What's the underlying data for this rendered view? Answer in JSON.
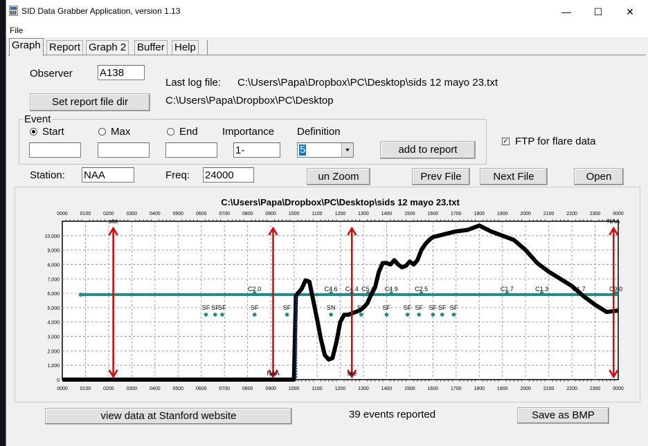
{
  "window": {
    "title": "SID Data Grabber Application, version 1.13",
    "controls": {
      "minimize": "—",
      "maximize": "☐",
      "close": "✕"
    }
  },
  "menu": {
    "file": "File"
  },
  "tabs": [
    "Graph",
    "Report",
    "Graph 2",
    "Buffer",
    "Help"
  ],
  "observer": {
    "label": "Observer",
    "value": "A138"
  },
  "last_log": {
    "label": "Last log file:",
    "path": "C:\\Users\\Papa\\Dropbox\\PC\\Desktop\\sids 12 mayo 23.txt"
  },
  "report_dir": {
    "button": "Set report file dir",
    "path": "C:\\Users\\Papa\\Dropbox\\PC\\Desktop"
  },
  "event": {
    "legend": "Event",
    "start": "Start",
    "max": "Max",
    "end": "End",
    "importance_label": "Importance",
    "importance_value": "1-",
    "definition_label": "Definition",
    "definition_value": "5",
    "add_button": "add to report"
  },
  "ftp": {
    "label": "FTP for flare data",
    "checked": "✓"
  },
  "station": {
    "label": "Station:",
    "value": "NAA"
  },
  "freq": {
    "label": "Freq:",
    "value": "24000"
  },
  "buttons": {
    "unzoom": "un Zoom",
    "prev": "Prev File",
    "next": "Next File",
    "open": "Open",
    "stanford": "view data at Stanford website",
    "save": "Save as BMP"
  },
  "events_reported": "39 events reported",
  "chart_data": {
    "type": "line",
    "title": "C:\\Users\\Papa\\Dropbox\\PC\\Desktop\\sids 12 mayo 23.txt",
    "x_ticks": [
      "0000",
      "0100",
      "0200",
      "0300",
      "0400",
      "0500",
      "0600",
      "0700",
      "0800",
      "0900",
      "1000",
      "1100",
      "1200",
      "1300",
      "1400",
      "1500",
      "1600",
      "1700",
      "1800",
      "1900",
      "2000",
      "2100",
      "2200",
      "2300",
      "0000"
    ],
    "y_ticks": [
      "0",
      "1,000",
      "2,000",
      "3,000",
      "4,000",
      "5,000",
      "6,000",
      "7,000",
      "8,000",
      "9,000",
      "10,000"
    ],
    "ylim": [
      0,
      11000
    ],
    "xlim_hours": [
      0,
      24
    ],
    "grid": true,
    "series": [
      {
        "values_hhmm": [
          "0000",
          "1000",
          "1005",
          "1010",
          "1020",
          "1030",
          "1040",
          "1050",
          "1100",
          "1110",
          "1120",
          "1130",
          "1140",
          "1150",
          "1200",
          "1210",
          "1220",
          "1230",
          "1240",
          "1250",
          "1300",
          "1310",
          "1320",
          "1330",
          "1340",
          "1350",
          "1400",
          "1410",
          "1420",
          "1430",
          "1440",
          "1450",
          "1500",
          "1510",
          "1520",
          "1530",
          "1540",
          "1550",
          "1600",
          "1630",
          "1700",
          "1730",
          "1800",
          "1830",
          "1900",
          "1930",
          "2000",
          "2030",
          "2100",
          "2130",
          "2200",
          "2230",
          "2300",
          "2330",
          "2400"
        ],
        "values": [
          0,
          0,
          5800,
          6000,
          6300,
          6900,
          6800,
          5500,
          4200,
          2800,
          1700,
          1400,
          1500,
          2600,
          4000,
          4500,
          4500,
          4600,
          4700,
          4800,
          5000,
          5300,
          5900,
          6400,
          7500,
          8100,
          8100,
          8000,
          8300,
          8000,
          7800,
          7900,
          8200,
          8000,
          8300,
          9000,
          9400,
          9700,
          9900,
          10100,
          10300,
          10400,
          10700,
          10300,
          10000,
          9700,
          9000,
          8100,
          7500,
          7000,
          6500,
          5800,
          5200,
          4700,
          4800
        ]
      }
    ],
    "teal_line_value": 5900,
    "markers": [
      {
        "label": "C2.0",
        "t": 8.3,
        "level": 6000
      },
      {
        "label": "C4.6",
        "t": 11.6,
        "level": 6000
      },
      {
        "label": "C4.4",
        "t": 12.5,
        "level": 6000
      },
      {
        "label": "C5.6",
        "t": 13.2,
        "level": 6000
      },
      {
        "label": "C4.9",
        "t": 14.2,
        "level": 6000
      },
      {
        "label": "C2.5",
        "t": 15.5,
        "level": 6000
      },
      {
        "label": "C1.7",
        "t": 19.2,
        "level": 6000
      },
      {
        "label": "C1.3",
        "t": 20.7,
        "level": 6000
      },
      {
        "label": "C1.7",
        "t": 22.3,
        "level": 6000
      },
      {
        "label": "C9.0",
        "t": 23.9,
        "level": 6000
      },
      {
        "label": "SF",
        "t": 6.2,
        "level": 4900
      },
      {
        "label": "SF",
        "t": 6.6,
        "level": 4900
      },
      {
        "label": "SF",
        "t": 6.9,
        "level": 4900
      },
      {
        "label": "SF",
        "t": 8.3,
        "level": 4900
      },
      {
        "label": "SF",
        "t": 9.7,
        "level": 4900
      },
      {
        "label": "SN",
        "t": 11.6,
        "level": 4900
      },
      {
        "label": "SF",
        "t": 12.9,
        "level": 4900
      },
      {
        "label": "SF",
        "t": 14.0,
        "level": 4900
      },
      {
        "label": "SF",
        "t": 14.9,
        "level": 4900
      },
      {
        "label": "SF",
        "t": 15.4,
        "level": 4900
      },
      {
        "label": "SF",
        "t": 16.0,
        "level": 4900
      },
      {
        "label": "SF",
        "t": 16.4,
        "level": 4900
      },
      {
        "label": "SF",
        "t": 16.9,
        "level": 4900
      }
    ],
    "arrows": [
      {
        "t": 2.2,
        "label": "site",
        "label_pos": "top"
      },
      {
        "t": 9.1,
        "label": "NAA",
        "label_pos": "bottom"
      },
      {
        "t": 12.5,
        "label": "site",
        "label_pos": "bottom"
      },
      {
        "t": 23.8,
        "label": "NAA",
        "label_pos": "top"
      }
    ],
    "colors": {
      "curve": "#000000",
      "teal": "#1f8a87",
      "arrow": "#e00000",
      "dots": "#1a3fa0"
    }
  }
}
